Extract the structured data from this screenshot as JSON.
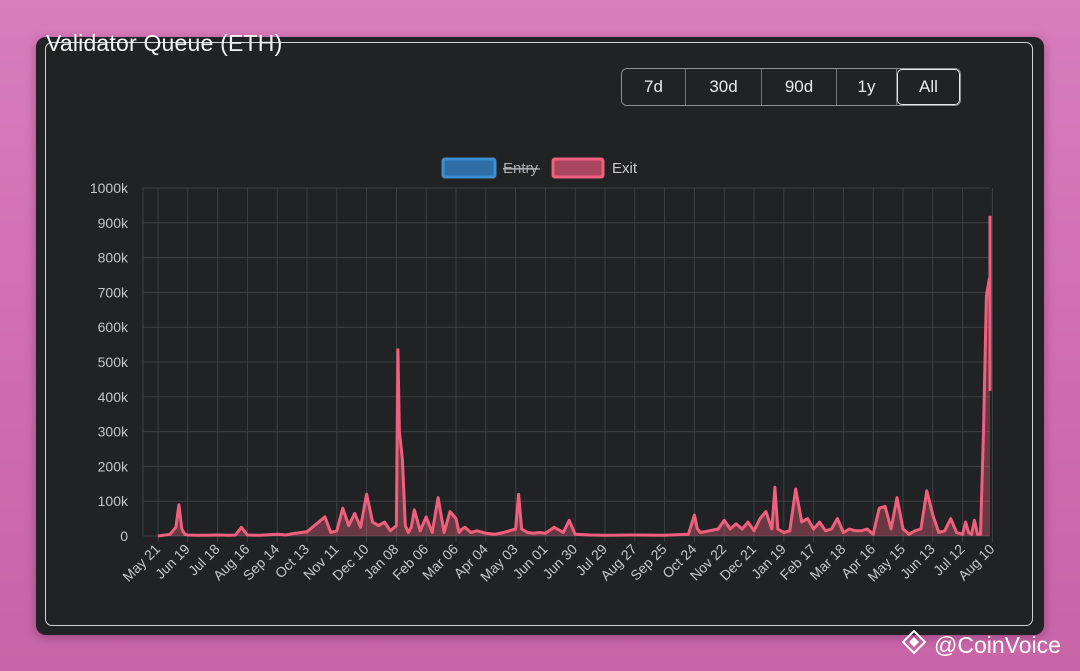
{
  "title": "Validator Queue (ETH)",
  "range_buttons": [
    {
      "label": "7d",
      "active": false
    },
    {
      "label": "30d",
      "active": false
    },
    {
      "label": "90d",
      "active": false
    },
    {
      "label": "1y",
      "active": false
    },
    {
      "label": "All",
      "active": true
    }
  ],
  "watermark": {
    "text": "@CoinVoice",
    "icon": "coinvoice-diamond-icon"
  },
  "chart_data": {
    "type": "line",
    "legend": [
      {
        "name": "Entry",
        "color": "#3d8fd1",
        "hidden": true
      },
      {
        "name": "Exit",
        "color": "#f0607e",
        "hidden": false
      }
    ],
    "legend_position": "top-center",
    "grid": true,
    "ylim": [
      0,
      1000000
    ],
    "y_ticks": [
      0,
      100000,
      200000,
      300000,
      400000,
      500000,
      600000,
      700000,
      800000,
      900000,
      1000000
    ],
    "y_tick_labels": [
      "0",
      "100k",
      "200k",
      "300k",
      "400k",
      "500k",
      "600k",
      "700k",
      "800k",
      "900k",
      "1000k"
    ],
    "x_tick_labels": [
      "May 21",
      "Jun 19",
      "Jul 18",
      "Aug 16",
      "Sep 14",
      "Oct 13",
      "Nov 11",
      "Dec 10",
      "Jan 08",
      "Feb 06",
      "Mar 06",
      "Apr 04",
      "May 03",
      "Jun 01",
      "Jun 30",
      "Jul 29",
      "Aug 27",
      "Sep 25",
      "Oct 24",
      "Nov 22",
      "Dec 21",
      "Jan 19",
      "Feb 17",
      "Mar 18",
      "Apr 16",
      "May 15",
      "Jun 13",
      "Jul 12",
      "Aug 10"
    ],
    "series": [
      {
        "name": "Exit",
        "x": [
          0,
          0.4,
          0.6,
          0.7,
          0.8,
          0.9,
          1,
          1.3,
          1.6,
          2,
          2.4,
          2.6,
          2.8,
          3,
          3.4,
          3.6,
          3.8,
          4,
          4.3,
          4.6,
          5,
          5.6,
          5.8,
          6,
          6.2,
          6.4,
          6.6,
          6.8,
          7,
          7.2,
          7.4,
          7.6,
          7.8,
          8,
          8.05,
          8.1,
          8.2,
          8.3,
          8.4,
          8.5,
          8.6,
          8.8,
          9,
          9.2,
          9.4,
          9.6,
          9.8,
          10,
          10.1,
          10.2,
          10.3,
          10.5,
          10.7,
          11,
          11.3,
          11.6,
          12,
          12.1,
          12.2,
          12.4,
          12.6,
          12.8,
          13,
          13.3,
          13.6,
          13.8,
          14,
          14.5,
          15,
          16,
          17,
          17.8,
          18,
          18.1,
          18.2,
          18.5,
          18.8,
          19,
          19.2,
          19.4,
          19.6,
          19.8,
          20,
          20.2,
          20.4,
          20.6,
          20.7,
          20.8,
          21,
          21.2,
          21.4,
          21.6,
          21.8,
          22,
          22.2,
          22.4,
          22.6,
          22.8,
          23,
          23.2,
          23.4,
          23.6,
          23.8,
          24,
          24.2,
          24.4,
          24.6,
          24.8,
          25,
          25.2,
          25.4,
          25.6,
          25.8,
          26,
          26.2,
          26.4,
          26.6,
          26.8,
          27,
          27.1,
          27.2,
          27.3,
          27.4,
          27.5,
          27.6,
          27.7,
          27.8,
          27.9,
          28,
          28.1,
          28.2,
          28.3,
          28.4,
          28.5,
          28.6,
          28.7,
          28.8,
          28.9
        ],
        "values": [
          0,
          5000,
          25000,
          90000,
          20000,
          5000,
          3000,
          2000,
          2000,
          3000,
          2000,
          3000,
          25000,
          3000,
          2000,
          3000,
          4000,
          5000,
          3000,
          8000,
          12000,
          55000,
          10000,
          15000,
          80000,
          30000,
          65000,
          25000,
          120000,
          40000,
          30000,
          40000,
          15000,
          30000,
          535000,
          300000,
          220000,
          30000,
          10000,
          25000,
          75000,
          15000,
          55000,
          10000,
          110000,
          10000,
          70000,
          50000,
          10000,
          20000,
          25000,
          10000,
          15000,
          8000,
          5000,
          10000,
          20000,
          120000,
          20000,
          10000,
          8000,
          10000,
          8000,
          25000,
          10000,
          45000,
          5000,
          3000,
          2000,
          3000,
          2000,
          5000,
          60000,
          20000,
          10000,
          15000,
          20000,
          45000,
          20000,
          35000,
          20000,
          40000,
          15000,
          50000,
          70000,
          20000,
          140000,
          20000,
          10000,
          15000,
          135000,
          40000,
          50000,
          20000,
          40000,
          15000,
          20000,
          50000,
          10000,
          20000,
          15000,
          15000,
          20000,
          5000,
          80000,
          85000,
          20000,
          110000,
          20000,
          5000,
          15000,
          20000,
          130000,
          60000,
          10000,
          15000,
          50000,
          10000,
          5000,
          40000,
          10000,
          5000,
          45000,
          5000,
          5000,
          300000,
          690000,
          740000,
          650000,
          680000,
          600000,
          420000,
          420000,
          450000,
          470000,
          650000,
          900000,
          920000
        ]
      }
    ]
  }
}
